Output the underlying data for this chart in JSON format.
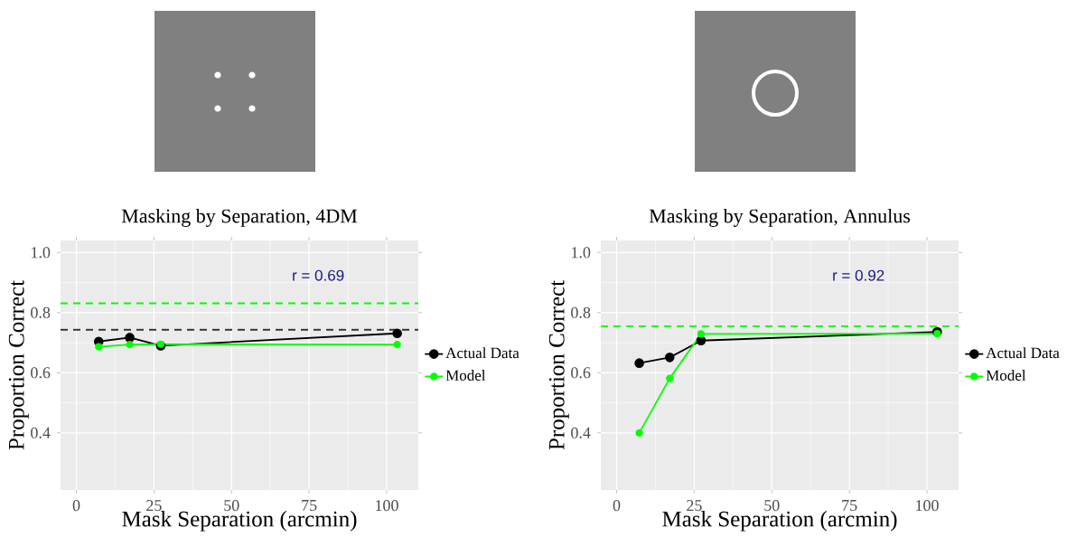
{
  "chart_data": [
    {
      "type": "line",
      "title": "Masking by Separation, 4DM",
      "xlabel": "Mask Separation (arcmin)",
      "ylabel": "Proportion Correct",
      "series": [
        {
          "name": "Actual Data",
          "color": "#000000",
          "x": [
            7.2,
            17.2,
            27.2,
            103.4
          ],
          "values": [
            0.704,
            0.717,
            0.69,
            0.731
          ]
        },
        {
          "name": "Model",
          "color": "#00ff00",
          "x": [
            7.2,
            17.2,
            27.2,
            103.4
          ],
          "values": [
            0.686,
            0.694,
            0.695,
            0.694
          ]
        }
      ],
      "xlim": [
        -5.1,
        110.2
      ],
      "ylim": [
        0.21,
        1.04
      ],
      "xticks": [
        0,
        25,
        50,
        75,
        100
      ],
      "yticks": [
        0.4,
        0.6,
        0.8,
        {
          "value": 1,
          "label": "1.0"
        }
      ],
      "ref_lines": [
        {
          "axis": "y",
          "value": 0.831,
          "color": "#00ff00",
          "line_style": "dashed"
        },
        {
          "axis": "y",
          "value": 0.743,
          "color": "#333333",
          "line_style": "dashed"
        }
      ],
      "annotations": [
        "r = 0.69"
      ],
      "grid": true,
      "legend": "right",
      "marker": "circle",
      "line_style": "solid"
    },
    {
      "type": "line",
      "title": "Masking by Separation, Annulus",
      "xlabel": "Mask Separation (arcmin)",
      "ylabel": "Proportion Correct",
      "series": [
        {
          "name": "Actual Data",
          "color": "#000000",
          "x": [
            7.3,
            17.1,
            27.2,
            103.3
          ],
          "values": [
            0.632,
            0.651,
            0.707,
            0.736
          ]
        },
        {
          "name": "Model",
          "color": "#00ff00",
          "x": [
            7.3,
            17.1,
            27.2,
            103.3
          ],
          "values": [
            0.4,
            0.581,
            0.729,
            0.73
          ]
        }
      ],
      "xlim": [
        -5.1,
        110.2
      ],
      "ylim": [
        0.21,
        1.04
      ],
      "xticks": [
        0,
        25,
        50,
        75,
        100
      ],
      "yticks": [
        0.4,
        0.6,
        0.8,
        {
          "value": 1,
          "label": "1.0"
        }
      ],
      "ref_lines": [
        {
          "axis": "y",
          "value": 0.755,
          "color": "#00ff00",
          "line_style": "dashed"
        }
      ],
      "annotations": [
        "r = 0.92"
      ],
      "grid": true,
      "legend": "right",
      "marker": "circle",
      "line_style": "solid"
    }
  ]
}
